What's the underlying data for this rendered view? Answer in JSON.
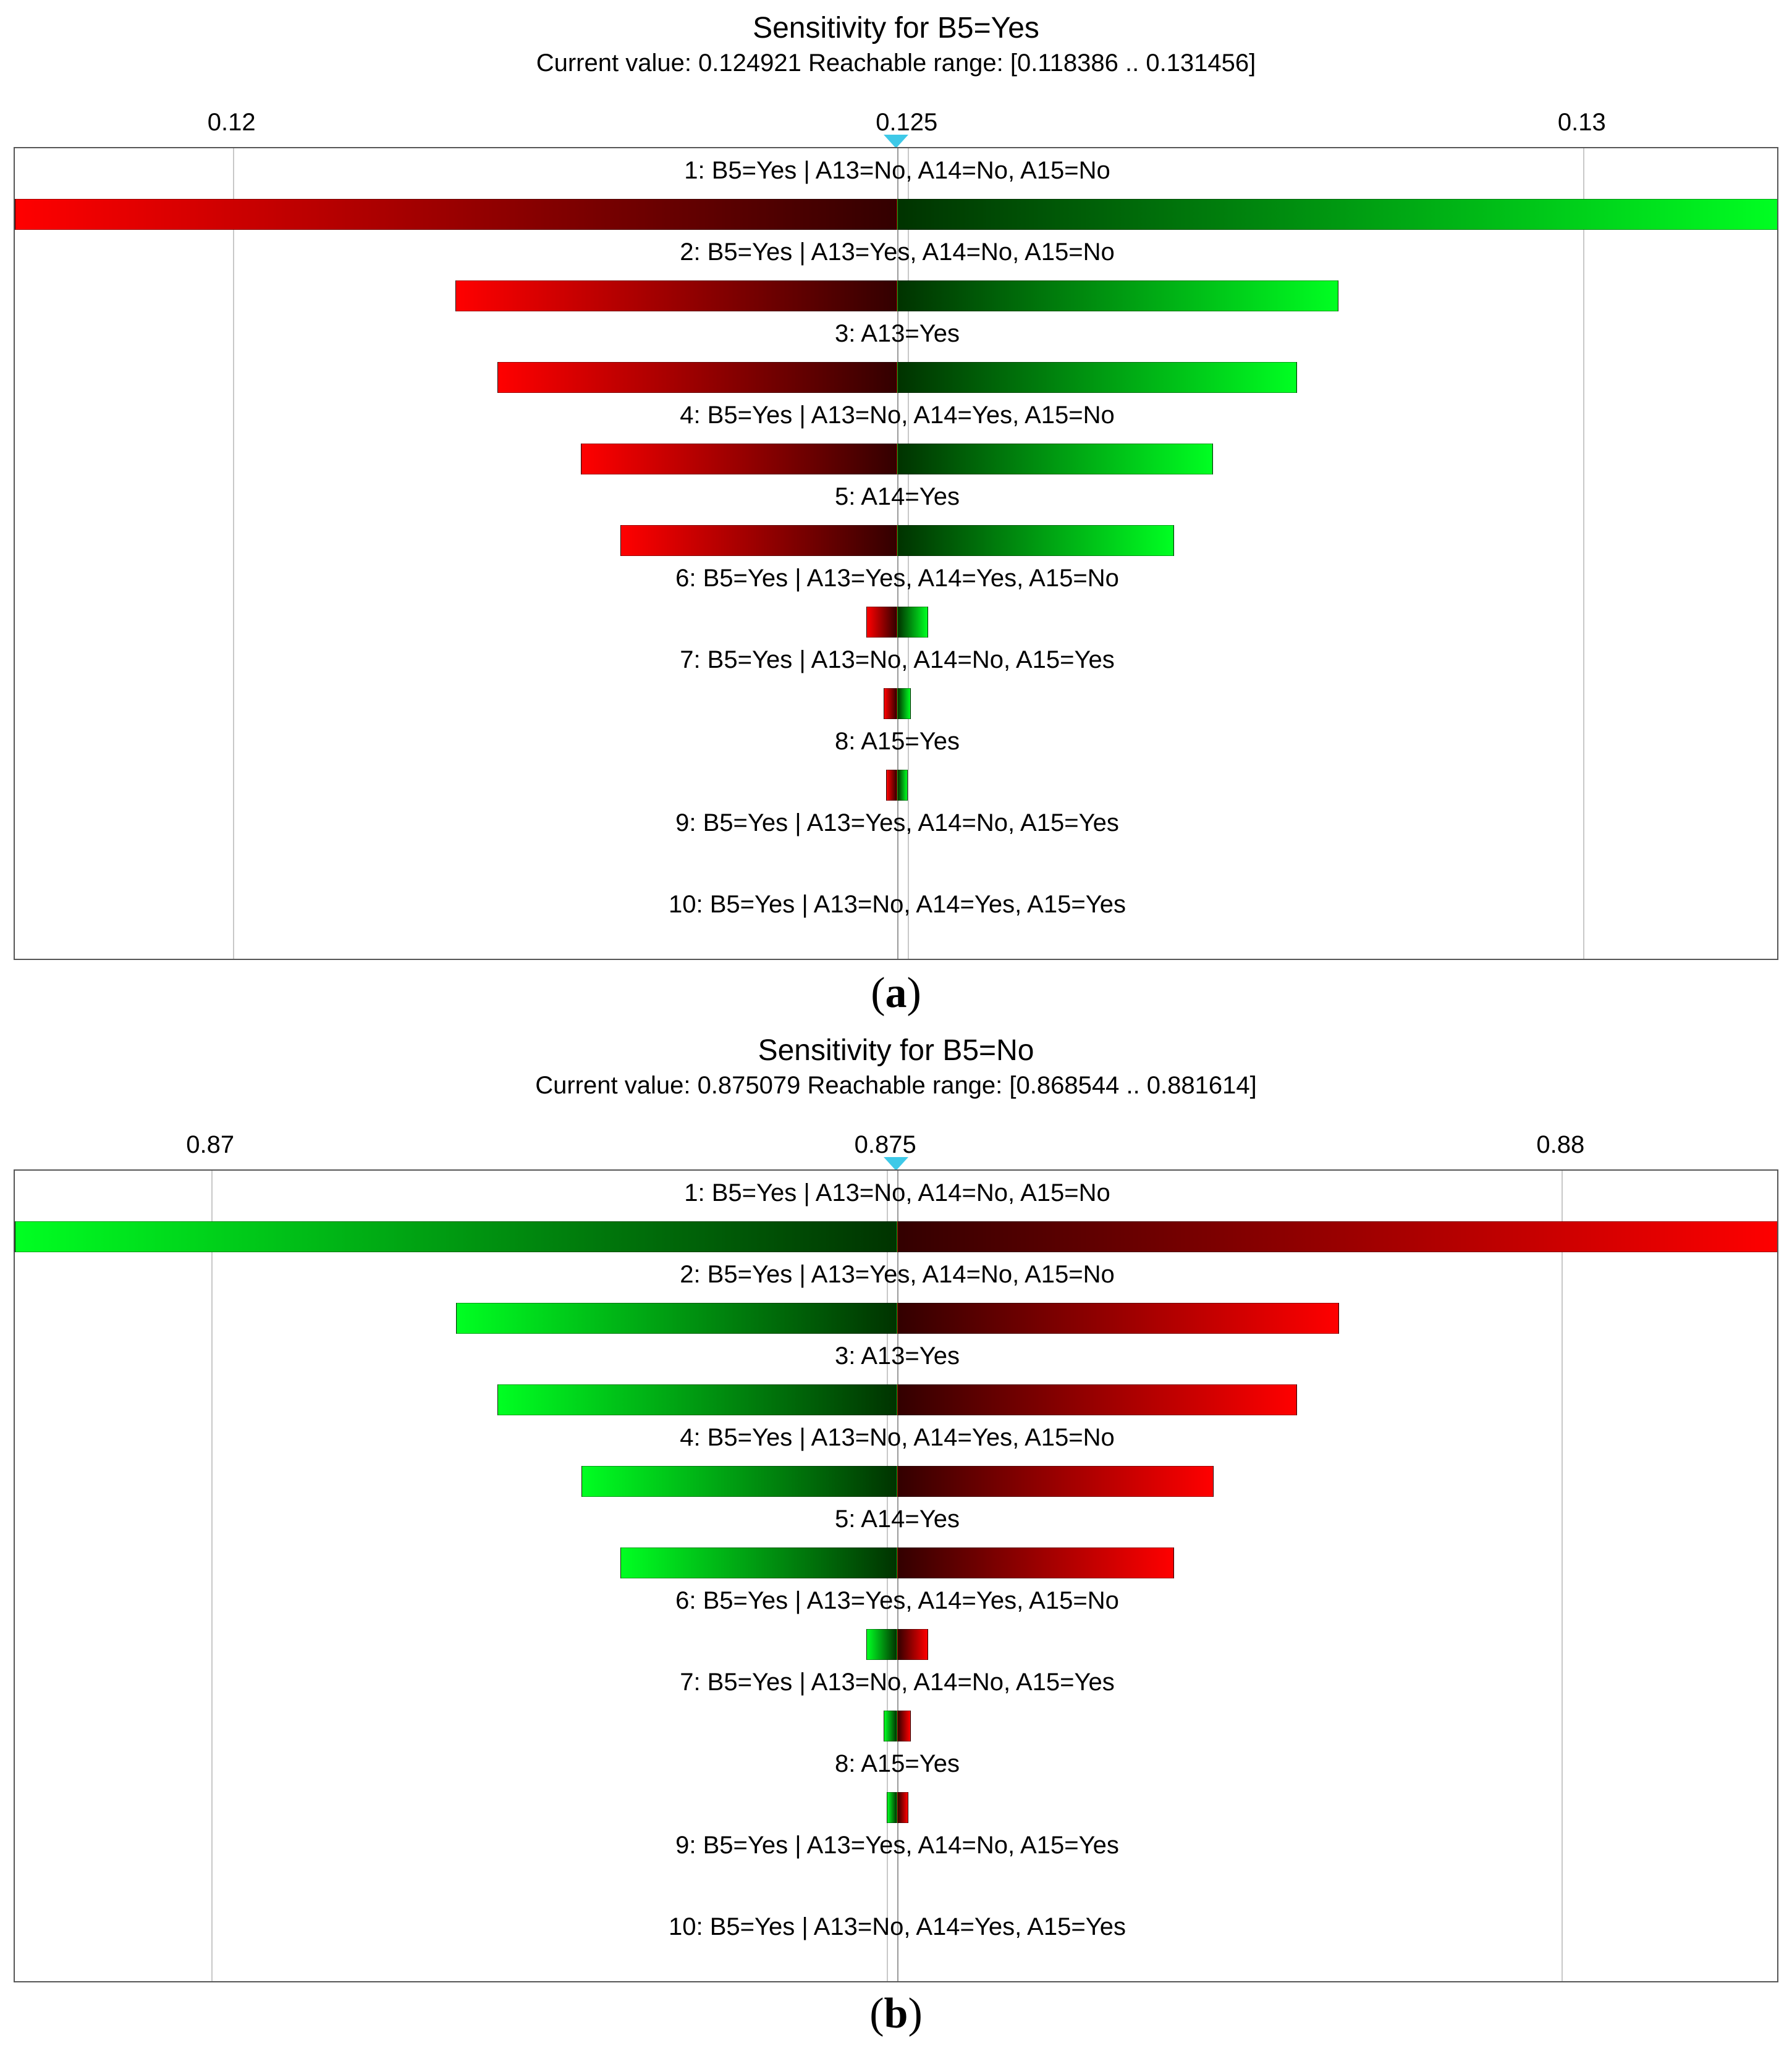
{
  "colors": {
    "green": "#00ff22",
    "red": "#ff0000",
    "dark_green": "#003300",
    "dark_red": "#330000",
    "grid": "#c8c8c8",
    "marker": "#3ec9e8"
  },
  "chart_data": [
    {
      "type": "bar",
      "subtype": "tornado",
      "title": "Sensitivity for B5=Yes",
      "subtitle": "Current value: 0.124921  Reachable range: [0.118386 .. 0.131456]",
      "caption_letter": "a",
      "current_value": 0.124921,
      "xlim": [
        0.118386,
        0.131456
      ],
      "ticks": [
        0.12,
        0.125,
        0.13
      ],
      "tick_labels": [
        "0.12",
        "0.125",
        "0.13"
      ],
      "low_color": "red",
      "high_color": "green",
      "rows": [
        {
          "label": "1: B5=Yes | A13=No, A14=No, A15=No",
          "low": 0.118386,
          "high": 0.131456
        },
        {
          "label": "2: B5=Yes | A13=Yes, A14=No, A15=No",
          "low": 0.12165,
          "high": 0.12819
        },
        {
          "label": "3: A13=Yes",
          "low": 0.12196,
          "high": 0.12788
        },
        {
          "label": "4: B5=Yes | A13=No, A14=Yes, A15=No",
          "low": 0.12258,
          "high": 0.12726
        },
        {
          "label": "5: A14=Yes",
          "low": 0.12287,
          "high": 0.12697
        },
        {
          "label": "6: B5=Yes | A13=Yes, A14=Yes, A15=No",
          "low": 0.12469,
          "high": 0.12515
        },
        {
          "label": "7: B5=Yes | A13=No, A14=No, A15=Yes",
          "low": 0.12482,
          "high": 0.12502
        },
        {
          "label": "8: A15=Yes",
          "low": 0.12484,
          "high": 0.125
        },
        {
          "label": "9: B5=Yes | A13=Yes, A14=No, A15=Yes",
          "low": 0.124921,
          "high": 0.124921
        },
        {
          "label": "10: B5=Yes | A13=No, A14=Yes, A15=Yes",
          "low": 0.124921,
          "high": 0.124921
        }
      ]
    },
    {
      "type": "bar",
      "subtype": "tornado",
      "title": "Sensitivity for B5=No",
      "subtitle": "Current value: 0.875079  Reachable range: [0.868544 .. 0.881614]",
      "caption_letter": "b",
      "current_value": 0.875079,
      "xlim": [
        0.868544,
        0.881614
      ],
      "ticks": [
        0.87,
        0.875,
        0.88
      ],
      "tick_labels": [
        "0.87",
        "0.875",
        "0.88"
      ],
      "low_color": "green",
      "high_color": "red",
      "rows": [
        {
          "label": "1: B5=Yes | A13=No, A14=No, A15=No",
          "low": 0.868544,
          "high": 0.881614
        },
        {
          "label": "2: B5=Yes | A13=Yes, A14=No, A15=No",
          "low": 0.87181,
          "high": 0.87835
        },
        {
          "label": "3: A13=Yes",
          "low": 0.87212,
          "high": 0.87804
        },
        {
          "label": "4: B5=Yes | A13=No, A14=Yes, A15=No",
          "low": 0.87274,
          "high": 0.87742
        },
        {
          "label": "5: A14=Yes",
          "low": 0.87303,
          "high": 0.87713
        },
        {
          "label": "6: B5=Yes | A13=Yes, A14=Yes, A15=No",
          "low": 0.87485,
          "high": 0.87531
        },
        {
          "label": "7: B5=Yes | A13=No, A14=No, A15=Yes",
          "low": 0.87498,
          "high": 0.87518
        },
        {
          "label": "8: A15=Yes",
          "low": 0.875,
          "high": 0.87516
        },
        {
          "label": "9: B5=Yes | A13=Yes, A14=No, A15=Yes",
          "low": 0.875079,
          "high": 0.875079
        },
        {
          "label": "10: B5=Yes | A13=No, A14=Yes, A15=Yes",
          "low": 0.875079,
          "high": 0.875079
        }
      ]
    }
  ]
}
